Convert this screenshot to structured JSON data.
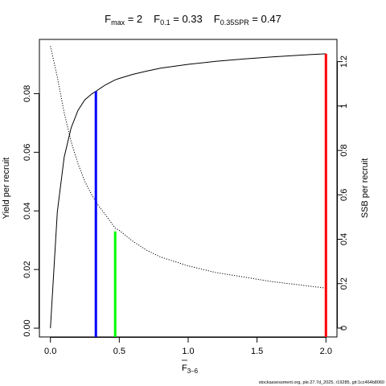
{
  "chart_data": {
    "type": "line",
    "title": {
      "fmax_main": "F",
      "fmax_sub": "max",
      "fmax_val": " = 2",
      "f01_main": "F",
      "f01_sub": "0.1",
      "f01_val": " = 0.33",
      "fspr_main": "F",
      "fspr_sub": "0.35SPR",
      "fspr_val": " = 0.47"
    },
    "xlabel_main": "F",
    "xlabel_sub": "3–6",
    "ylabel": "Yield per recruit",
    "y2label": "SSB per recruit",
    "xlim": [
      -0.08,
      2.08
    ],
    "ylim": [
      -0.003,
      0.0985
    ],
    "y2lim": [
      -0.04,
      1.3
    ],
    "xticks": [
      0,
      0.5,
      1,
      1.5,
      2
    ],
    "xtick_labels": [
      "0.0",
      "0.5",
      "1.0",
      "1.5",
      "2.0"
    ],
    "yticks": [
      0,
      0.02,
      0.04,
      0.06,
      0.08
    ],
    "ytick_labels": [
      "0.00",
      "0.02",
      "0.04",
      "0.06",
      "0.08"
    ],
    "y2ticks": [
      0,
      0.2,
      0.4,
      0.6,
      0.8,
      1,
      1.2
    ],
    "y2tick_labels": [
      "0",
      "0.2",
      "0.4",
      "0.6",
      "0.8",
      "1",
      "1.2"
    ],
    "series": [
      {
        "axis": "left",
        "style": "solid",
        "color": "#000000",
        "x": [
          0,
          0.05,
          0.1,
          0.15,
          0.2,
          0.25,
          0.3,
          0.33,
          0.4,
          0.47,
          0.5,
          0.6,
          0.7,
          0.8,
          1.0,
          1.2,
          1.4,
          1.6,
          1.8,
          2.0
        ],
        "y": [
          0,
          0.0397,
          0.0583,
          0.0683,
          0.0743,
          0.0779,
          0.0799,
          0.0808,
          0.083,
          0.0847,
          0.0852,
          0.0866,
          0.0877,
          0.0887,
          0.09,
          0.091,
          0.0918,
          0.0925,
          0.0931,
          0.0936
        ]
      },
      {
        "axis": "right",
        "style": "dotted",
        "color": "#000000",
        "x": [
          0,
          0.05,
          0.1,
          0.15,
          0.2,
          0.25,
          0.3,
          0.35,
          0.4,
          0.47,
          0.5,
          0.6,
          0.7,
          0.8,
          1.0,
          1.2,
          1.4,
          1.6,
          1.8,
          2.0
        ],
        "y": [
          1.27,
          1.13,
          0.97,
          0.84,
          0.74,
          0.66,
          0.6,
          0.55,
          0.51,
          0.45,
          0.44,
          0.39,
          0.35,
          0.32,
          0.28,
          0.25,
          0.23,
          0.21,
          0.195,
          0.18
        ]
      }
    ],
    "vlines": [
      {
        "name": "F0.1",
        "x": 0.33,
        "y": 0.0808,
        "color": "#0000ff"
      },
      {
        "name": "F0.35SPR",
        "x": 0.47,
        "y": 0.033,
        "color": "#00ff00"
      },
      {
        "name": "Fmax",
        "x": 2.0,
        "y": 0.0936,
        "color": "#ff0000"
      }
    ],
    "grid": false
  },
  "footer": "stockassessment.org, ple.27.7d_2025, r19285, git:1cc464b8060"
}
